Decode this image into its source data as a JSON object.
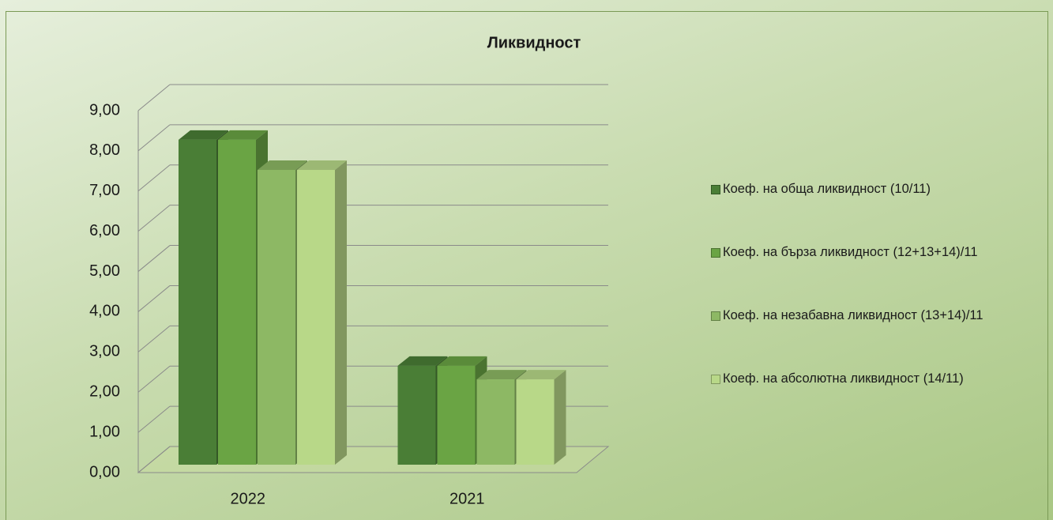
{
  "chart_data": {
    "type": "bar3d",
    "title": "Ликвидност",
    "categories": [
      "2022",
      "2021"
    ],
    "series": [
      {
        "name": "Коеф. на обща ликвидност (10/11)",
        "color": "#4a7e36",
        "values": [
          8.08,
          2.46
        ]
      },
      {
        "name": "Коеф. на бърза ликвидност (12+13+14)/11",
        "color": "#6aa444",
        "values": [
          8.08,
          2.46
        ]
      },
      {
        "name": "Коеф. на незабавна ликвидност (13+14)/11",
        "color": "#8db864",
        "values": [
          7.33,
          2.12
        ]
      },
      {
        "name": "Коеф. на абсолютна ликвидност (14/11)",
        "color": "#b8d888",
        "values": [
          7.33,
          2.12
        ]
      }
    ],
    "ylim": [
      0,
      9
    ],
    "yticks": [
      {
        "value": 0,
        "label": "0,00"
      },
      {
        "value": 1,
        "label": "1,00"
      },
      {
        "value": 2,
        "label": "2,00"
      },
      {
        "value": 3,
        "label": "3,00"
      },
      {
        "value": 4,
        "label": "4,00"
      },
      {
        "value": 5,
        "label": "5,00"
      },
      {
        "value": 6,
        "label": "6,00"
      },
      {
        "value": 7,
        "label": "7,00"
      },
      {
        "value": 8,
        "label": "8,00"
      },
      {
        "value": 9,
        "label": "9,00"
      }
    ],
    "grid": true,
    "legend": "right"
  }
}
